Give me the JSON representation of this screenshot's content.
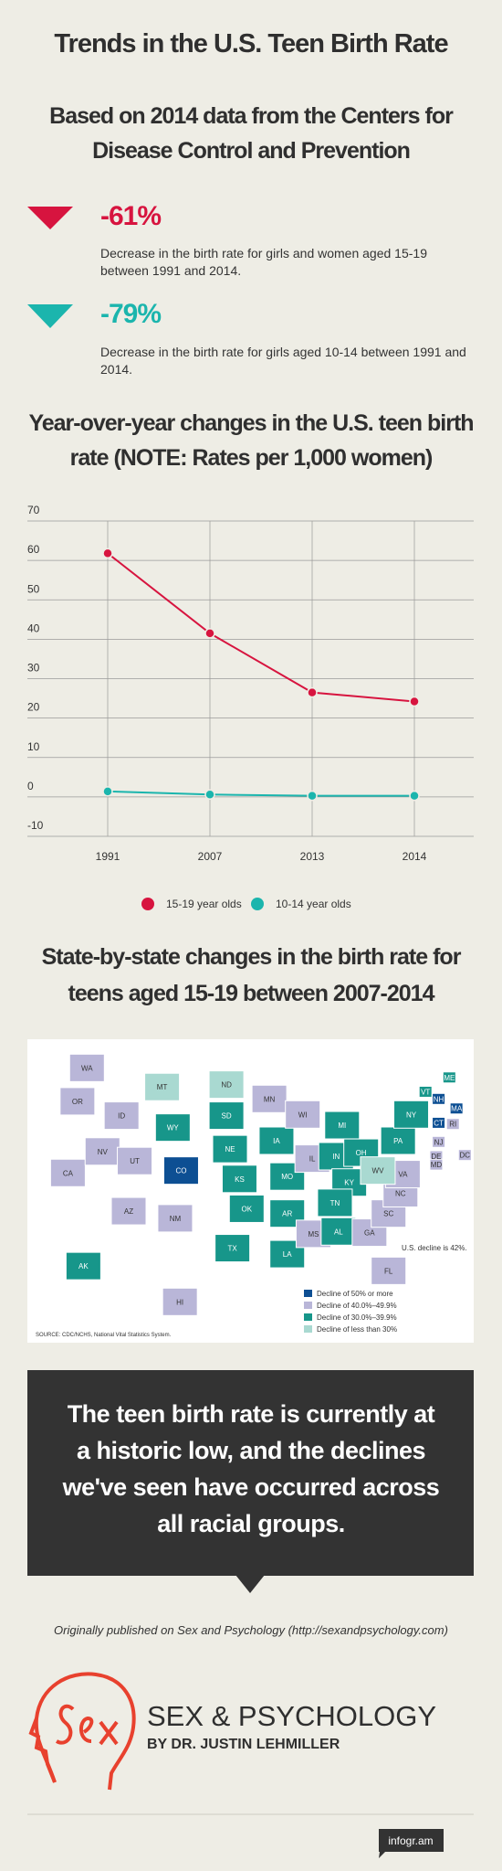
{
  "header": {
    "title": "Trends in the U.S. Teen Birth Rate",
    "subtitle": "Based on 2014 data from the Centers for Disease Control and Prevention"
  },
  "stats": [
    {
      "value": "-61%",
      "color": "#d7143f",
      "text": "Decrease in the birth rate for girls and women aged 15-19 between 1991 and 2014."
    },
    {
      "value": "-79%",
      "color": "#1bb5ad",
      "text": "Decrease in the birth rate for girls aged 10-14 between 1991 and 2014."
    }
  ],
  "chart_data": {
    "type": "line",
    "title": "Year-over-year changes in the U.S. teen birth rate (NOTE: Rates per 1,000 women)",
    "categories": [
      "1991",
      "2007",
      "2013",
      "2014"
    ],
    "series": [
      {
        "name": "15-19 year olds",
        "color": "#d7143f",
        "values": [
          61.8,
          41.5,
          26.5,
          24.2
        ]
      },
      {
        "name": "10-14 year olds",
        "color": "#1bb5ad",
        "values": [
          1.4,
          0.6,
          0.3,
          0.3
        ]
      }
    ],
    "ylim": [
      -10,
      70
    ],
    "yticks": [
      -10,
      0,
      10,
      20,
      30,
      40,
      50,
      60,
      70
    ],
    "grid": true,
    "legend": "bottom"
  },
  "map": {
    "title": "State-by-state changes in the birth rate for teens aged 15-19 between 2007-2014",
    "states": [
      {
        "label": "WA",
        "color": "#b9b6d8"
      },
      {
        "label": "OR",
        "color": "#b9b6d8"
      },
      {
        "label": "CA",
        "color": "#b9b6d8"
      },
      {
        "label": "ID",
        "color": "#b9b6d8"
      },
      {
        "label": "NV",
        "color": "#b9b6d8"
      },
      {
        "label": "UT",
        "color": "#b9b6d8"
      },
      {
        "label": "AZ",
        "color": "#b9b6d8"
      },
      {
        "label": "MT",
        "color": "#a9d9d1"
      },
      {
        "label": "WY",
        "color": "#17968a"
      },
      {
        "label": "CO",
        "color": "#0d4f93"
      },
      {
        "label": "NM",
        "color": "#b9b6d8"
      },
      {
        "label": "ND",
        "color": "#a9d9d1"
      },
      {
        "label": "SD",
        "color": "#17968a"
      },
      {
        "label": "NE",
        "color": "#17968a"
      },
      {
        "label": "KS",
        "color": "#17968a"
      },
      {
        "label": "OK",
        "color": "#17968a"
      },
      {
        "label": "TX",
        "color": "#17968a"
      },
      {
        "label": "MN",
        "color": "#b9b6d8"
      },
      {
        "label": "IA",
        "color": "#17968a"
      },
      {
        "label": "MO",
        "color": "#17968a"
      },
      {
        "label": "AR",
        "color": "#17968a"
      },
      {
        "label": "LA",
        "color": "#17968a"
      },
      {
        "label": "WI",
        "color": "#b9b6d8"
      },
      {
        "label": "IL",
        "color": "#b9b6d8"
      },
      {
        "label": "MI",
        "color": "#17968a"
      },
      {
        "label": "IN",
        "color": "#17968a"
      },
      {
        "label": "OH",
        "color": "#17968a"
      },
      {
        "label": "KY",
        "color": "#17968a"
      },
      {
        "label": "TN",
        "color": "#17968a"
      },
      {
        "label": "MS",
        "color": "#b9b6d8"
      },
      {
        "label": "AL",
        "color": "#17968a"
      },
      {
        "label": "GA",
        "color": "#b9b6d8"
      },
      {
        "label": "FL",
        "color": "#b9b6d8"
      },
      {
        "label": "SC",
        "color": "#b9b6d8"
      },
      {
        "label": "NC",
        "color": "#b9b6d8"
      },
      {
        "label": "VA",
        "color": "#b9b6d8"
      },
      {
        "label": "WV",
        "color": "#a9d9d1"
      },
      {
        "label": "PA",
        "color": "#17968a"
      },
      {
        "label": "NY",
        "color": "#17968a"
      },
      {
        "label": "VT",
        "color": "#17968a"
      },
      {
        "label": "NH",
        "color": "#0d4f93"
      },
      {
        "label": "ME",
        "color": "#17968a"
      },
      {
        "label": "MA",
        "color": "#0d4f93"
      },
      {
        "label": "RI",
        "color": "#b9b6d8"
      },
      {
        "label": "CT",
        "color": "#0d4f93"
      },
      {
        "label": "NJ",
        "color": "#b9b6d8"
      },
      {
        "label": "DE",
        "color": "#b9b6d8"
      },
      {
        "label": "MD",
        "color": "#b9b6d8"
      },
      {
        "label": "DC",
        "color": "#b9b6d8"
      },
      {
        "label": "AK",
        "color": "#17968a"
      },
      {
        "label": "HI",
        "color": "#b9b6d8"
      }
    ],
    "legend": [
      {
        "label": "Decline of 50% or more",
        "color": "#0d4f93"
      },
      {
        "label": "Decline of 40.0%–49.9%",
        "color": "#b9b6d8"
      },
      {
        "label": "Decline of 30.0%–39.9%",
        "color": "#17968a"
      },
      {
        "label": "Decline of less than 30%",
        "color": "#a9d9d1"
      }
    ],
    "note": "U.S. decline is 42%.",
    "source": "SOURCE: CDC/NCHS, National Vital Statistics System."
  },
  "callout": {
    "text": "The teen birth rate is currently at a historic low, and the declines we've seen have occurred across all racial groups."
  },
  "credit": "Originally published on Sex and Psychology (http://sexandpsychology.com)",
  "logo": {
    "name": "SEX & PSYCHOLOGY",
    "byline": "BY DR. JUSTIN LEHMILLER"
  },
  "footer": {
    "badge": "infogr.am"
  }
}
